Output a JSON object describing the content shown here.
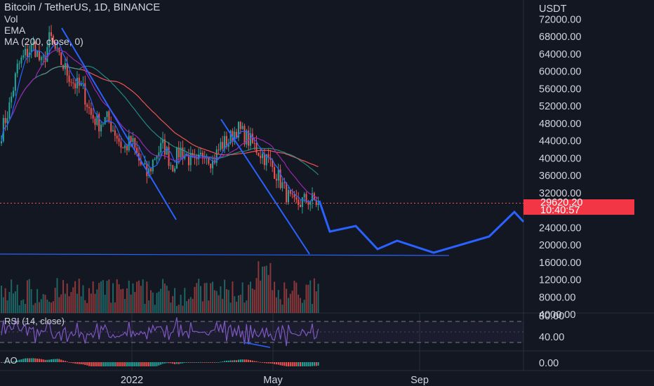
{
  "legend": {
    "title": "Bitcoin / TetherUS, 1D, BINANCE",
    "vol": "Vol",
    "ema": "EMA",
    "ma": "MA (200, close, 0)"
  },
  "panes": {
    "rsi_label": "RSI (14, close)",
    "ao_label": "AO"
  },
  "price_axis": {
    "currency": "USDT",
    "labels": [
      "72000.00",
      "68000.00",
      "64000.00",
      "60000.00",
      "56000.00",
      "52000.00",
      "48000.00",
      "44000.00",
      "40000.00",
      "36000.00",
      "32000.00",
      "24000.00",
      "20000.00",
      "16000.00",
      "12000.00",
      "8000.00",
      "4000.00"
    ]
  },
  "rsi_axis": {
    "labels": [
      "80.00",
      "40.00"
    ]
  },
  "ao_axis": {
    "labels": [
      "0.00"
    ]
  },
  "time_axis": {
    "labels": [
      "2022",
      "May",
      "Sep"
    ]
  },
  "current_price": {
    "value": "29620.20",
    "countdown": "10:40:57"
  },
  "colors": {
    "background": "#131722",
    "up": "#26a69a",
    "down": "#ef5350",
    "drawing": "#2962ff",
    "ema": "#2962ff",
    "ma_red": "#ef5350",
    "ma_green": "#26a69a",
    "magenta": "#9c27b0",
    "rsi": "#7e57c2",
    "badge": "#f23645"
  },
  "chart_data": {
    "type": "candlestick",
    "symbol": "Bitcoin / TetherUS",
    "timeframe": "1D",
    "exchange": "BINANCE",
    "ylim": [
      4000,
      76000
    ],
    "price_path_closes": [
      46000,
      52000,
      61000,
      64000,
      66000,
      61000,
      68000,
      63000,
      60000,
      57000,
      56000,
      50000,
      48000,
      49000,
      46000,
      42000,
      44000,
      39000,
      36000,
      41000,
      43000,
      38000,
      42000,
      40000,
      38000,
      42000,
      39000,
      43000,
      44000,
      47000,
      45000,
      43000,
      41000,
      39000,
      36000,
      32000,
      29000,
      30000,
      30500,
      29620
    ],
    "drawn_trendlines": [
      {
        "from": [
          "Sep 2021",
          71000
        ],
        "to": [
          "Feb 2022",
          27000
        ]
      },
      {
        "from": [
          "Mar 2022",
          48500
        ],
        "to": [
          "Jun 2022",
          17000
        ]
      }
    ],
    "support_level": 17000,
    "projection_path": [
      29620,
      23000,
      24500,
      18500,
      21000,
      18000,
      22000,
      26000,
      27000,
      26000
    ],
    "rsi": {
      "levels": [
        70,
        30
      ],
      "last": 48,
      "ylabels": [
        80,
        40
      ]
    },
    "ao": {
      "zero": 0
    }
  }
}
